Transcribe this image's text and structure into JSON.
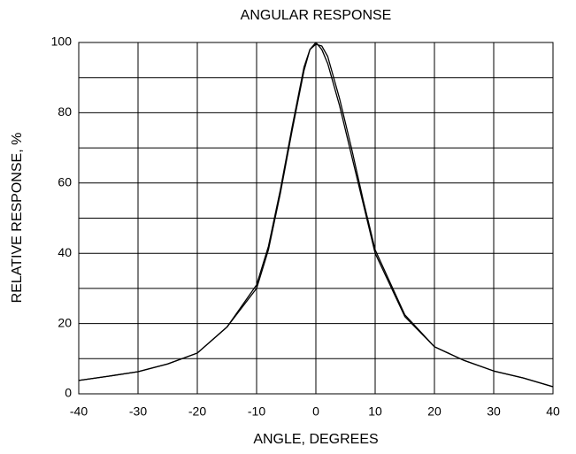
{
  "chart_data": {
    "type": "line",
    "title": "ANGULAR RESPONSE",
    "x_label": "ANGLE, DEGREES",
    "y_label": "RELATIVE RESPONSE, %",
    "x": [
      -40,
      -35,
      -30,
      -25,
      -20,
      -15,
      -10,
      -8,
      -6,
      -4,
      -2,
      -1,
      0,
      1,
      2,
      4,
      6,
      8,
      10,
      15,
      20,
      25,
      30,
      35,
      40
    ],
    "series": [
      {
        "color": "#000000",
        "values": [
          3.8,
          5,
          6.3,
          8.5,
          11.6,
          19,
          31,
          42,
          58,
          76,
          93,
          98,
          100,
          98,
          94,
          82,
          68,
          54,
          40,
          22,
          13.4,
          9.5,
          6.5,
          4.5,
          2
        ]
      },
      {
        "color": "#000000",
        "values": [
          3.8,
          5,
          6.3,
          8.5,
          11.6,
          19,
          30,
          41,
          57,
          75,
          92,
          98,
          99.5,
          99,
          96,
          84,
          70,
          55,
          41,
          22.5,
          13.4,
          9.5,
          6.5,
          4.5,
          2
        ]
      }
    ],
    "xlim": [
      -40,
      40
    ],
    "xticks": [
      -40,
      -30,
      -20,
      -10,
      0,
      10,
      20,
      30,
      40
    ],
    "ylim": [
      0,
      100
    ],
    "yticks": [
      0,
      20,
      40,
      60,
      80,
      100
    ],
    "yminorticks": [
      10,
      30,
      50,
      70,
      90
    ],
    "grid": true
  }
}
